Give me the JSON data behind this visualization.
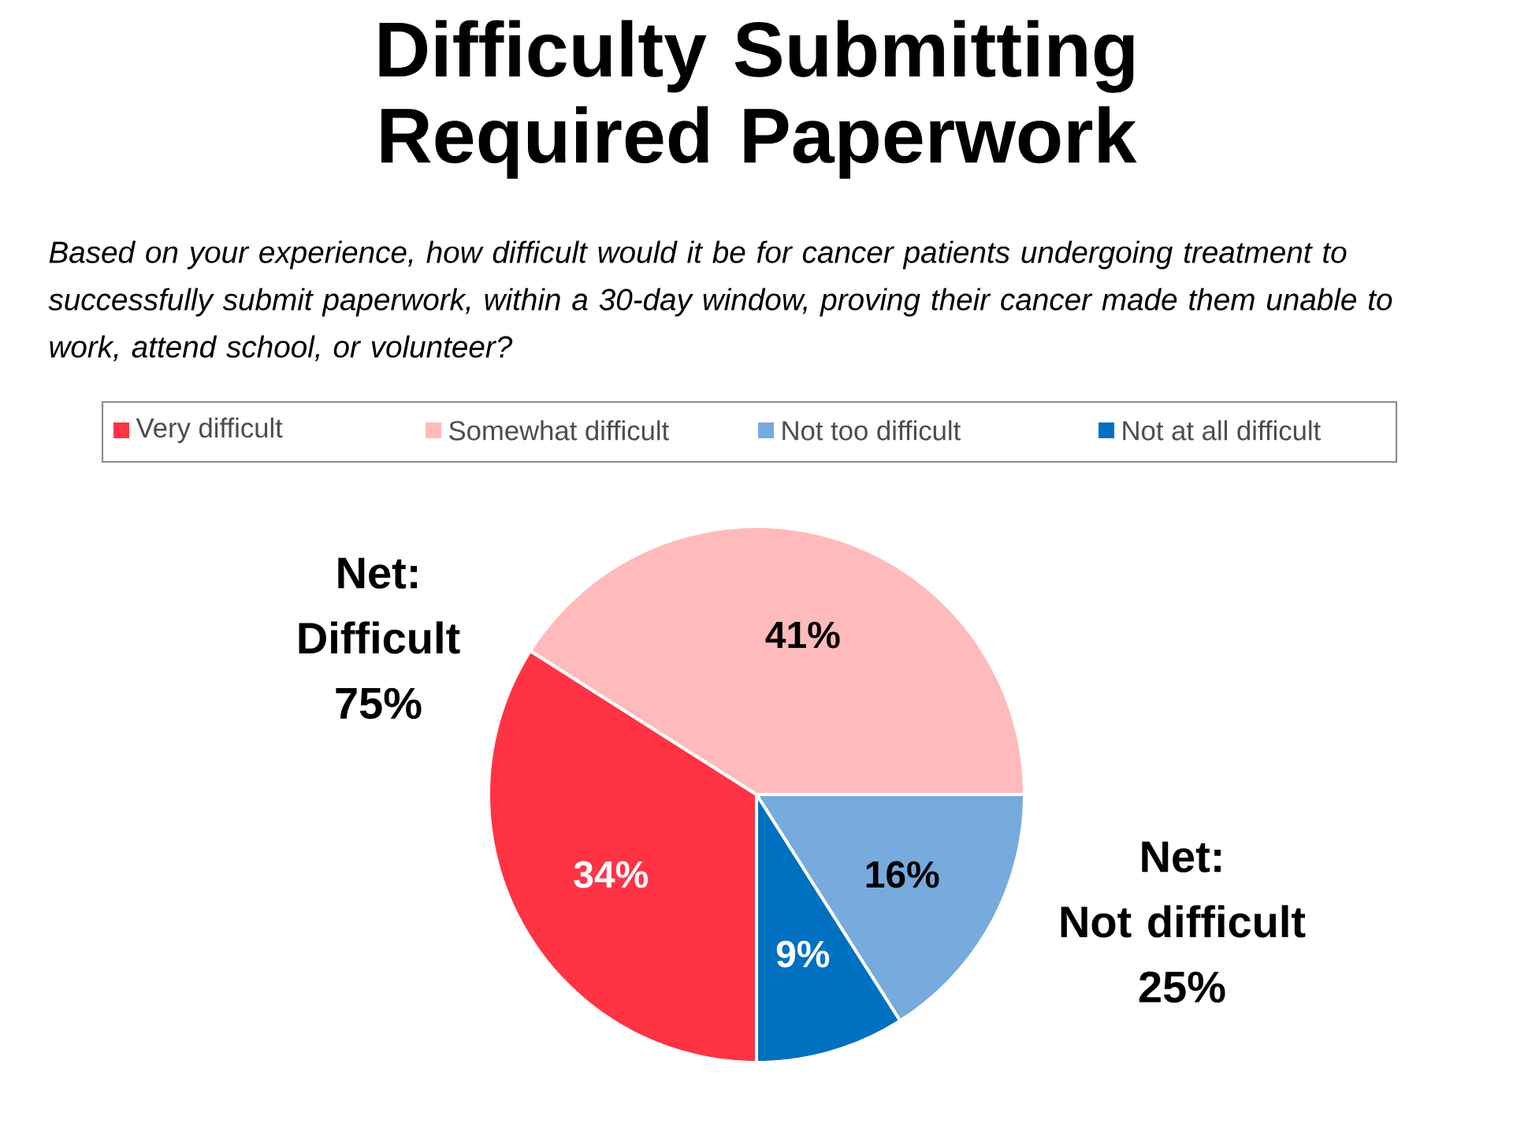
{
  "chart_data": {
    "type": "pie",
    "title": "Difficulty Submitting Required Paperwork",
    "subtitle": "Based on your experience, how difficult would it be for cancer patients undergoing treatment to successfully submit paperwork, within a 30-day window, proving their cancer made them unable to work, attend school, or volunteer?",
    "categories": [
      "Very difficult",
      "Somewhat difficult",
      "Not too difficult",
      "Not at all difficult"
    ],
    "values": [
      34,
      41,
      16,
      9
    ],
    "colors": [
      "#ff3344",
      "#ffbbbb",
      "#77aadd",
      "#0070c0"
    ],
    "value_labels": [
      "34%",
      "41%",
      "16%",
      "9%"
    ],
    "legend": "top",
    "annotations": [
      "Net: Difficult 75%",
      "Net: Not difficult 25%"
    ]
  }
}
